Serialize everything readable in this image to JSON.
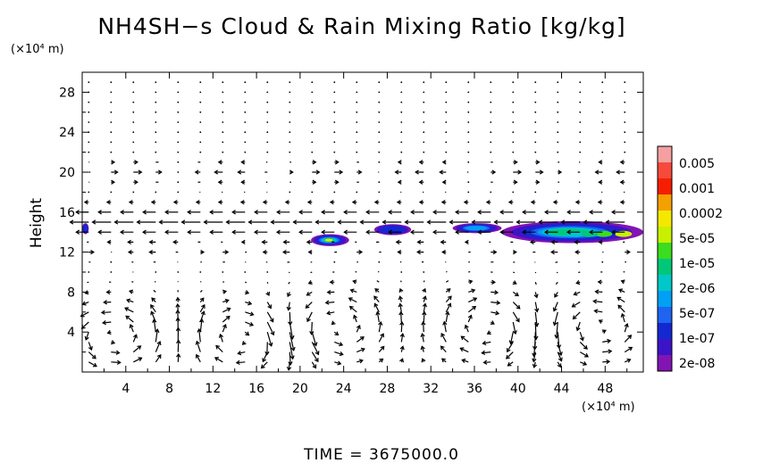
{
  "chart_data": {
    "type": "contour-vector",
    "title": "NH4SH−s Cloud & Rain Mixing Ratio [kg/kg]",
    "ylabel": "Height",
    "y_unit": "(×10⁴ m)",
    "x_unit": "(×10⁴ m)",
    "xlim": [
      0,
      51.5
    ],
    "ylim": [
      0,
      30
    ],
    "xticks": [
      4,
      8,
      12,
      16,
      20,
      24,
      28,
      32,
      36,
      40,
      44,
      48
    ],
    "yticks": [
      4,
      8,
      12,
      16,
      20,
      24,
      28
    ],
    "time_label": "TIME  =  3675000.0",
    "colorbar": {
      "labels": [
        "0.005",
        "0.001",
        "0.0002",
        "5e-05",
        "1e-05",
        "2e-06",
        "5e-07",
        "1e-07",
        "2e-08"
      ],
      "colors": [
        "#f5a0a0",
        "#f54a3c",
        "#f51e00",
        "#f5a000",
        "#f5e800",
        "#c8f000",
        "#3cdc1e",
        "#00c878",
        "#00c8c8",
        "#00a0f5",
        "#1e64f0",
        "#1428d2",
        "#3c14c8",
        "#8214b4"
      ]
    },
    "cloud_patches": [
      {
        "x": [
          21.0,
          24.5
        ],
        "z": [
          12.6,
          13.8
        ],
        "peak": "5e-05"
      },
      {
        "x": [
          26.8,
          30.2
        ],
        "z": [
          13.7,
          14.8
        ],
        "peak": "1e-07"
      },
      {
        "x": [
          34.0,
          38.5
        ],
        "z": [
          13.9,
          14.9
        ],
        "peak": "5e-07"
      },
      {
        "x": [
          38.5,
          51.5
        ],
        "z": [
          12.9,
          15.1
        ],
        "peak": "1e-05"
      },
      {
        "x": [
          0.0,
          0.6
        ],
        "z": [
          13.8,
          14.9
        ],
        "peak": "1e-07"
      }
    ],
    "wind_jet_level_km": 15,
    "circulation_cells": [
      {
        "x": 3.0,
        "z": 3.5,
        "dir": 1
      },
      {
        "x": 15.0,
        "z": 3.5,
        "dir": -1
      },
      {
        "x": 23.0,
        "z": 4.5,
        "dir": 1
      },
      {
        "x": 37.5,
        "z": 4.5,
        "dir": -1
      },
      {
        "x": 47.0,
        "z": 4.5,
        "dir": 1
      }
    ]
  }
}
